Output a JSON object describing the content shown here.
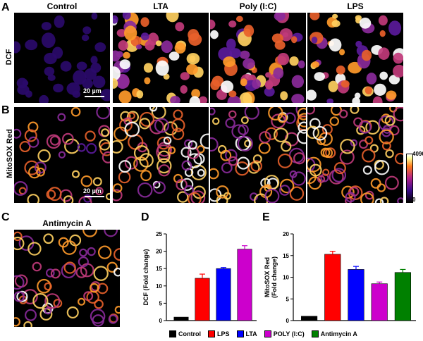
{
  "panels": {
    "a_letter": "A",
    "b_letter": "B",
    "c_letter": "C",
    "d_letter": "D",
    "e_letter": "E"
  },
  "columns": [
    "Control",
    "LTA",
    "Poly (I:C)",
    "LPS"
  ],
  "rows": {
    "dcf": "DCF",
    "mitosox": "MitoSOX Red"
  },
  "scalebar": "20 µm",
  "colorbar": {
    "max": "4096",
    "min": "0"
  },
  "antimycin_title": "Antimycin A",
  "colors": {
    "control": "#000000",
    "lps": "#ff0000",
    "lta": "#0000ff",
    "polyic": "#cc00cc",
    "antimycin": "#008000"
  },
  "chart_data": [
    {
      "type": "bar",
      "panel": "D",
      "categories": [
        "Control",
        "LPS",
        "LTA",
        "POLY (I:C)"
      ],
      "values": [
        1.0,
        12.2,
        15.0,
        20.6
      ],
      "errors": [
        0.0,
        1.2,
        0.3,
        1.0
      ],
      "colors": [
        "#000000",
        "#ff0000",
        "#0000ff",
        "#cc00cc"
      ],
      "ylabel": "DCF (Fold change)",
      "ylim": [
        0,
        25
      ],
      "yticks": [
        0,
        5,
        10,
        15,
        20,
        25
      ]
    },
    {
      "type": "bar",
      "panel": "E",
      "categories": [
        "Control",
        "LPS",
        "LTA",
        "POLY (I:C)",
        "Antimycin A"
      ],
      "values": [
        1.0,
        15.3,
        11.8,
        8.5,
        11.1
      ],
      "errors": [
        0.0,
        0.7,
        0.7,
        0.4,
        0.7
      ],
      "colors": [
        "#000000",
        "#ff0000",
        "#0000ff",
        "#cc00cc",
        "#008000"
      ],
      "ylabel": "MitoSOX Red (Fold change)",
      "ylim": [
        0,
        20
      ],
      "yticks": [
        0,
        5,
        10,
        15,
        20
      ]
    }
  ],
  "legend": [
    {
      "label": "Control",
      "color": "#000000"
    },
    {
      "label": "LPS",
      "color": "#ff0000"
    },
    {
      "label": "LTA",
      "color": "#0000ff"
    },
    {
      "label": "POLY (I:C)",
      "color": "#cc00cc"
    },
    {
      "label": "Antimycin A",
      "color": "#008000"
    }
  ]
}
